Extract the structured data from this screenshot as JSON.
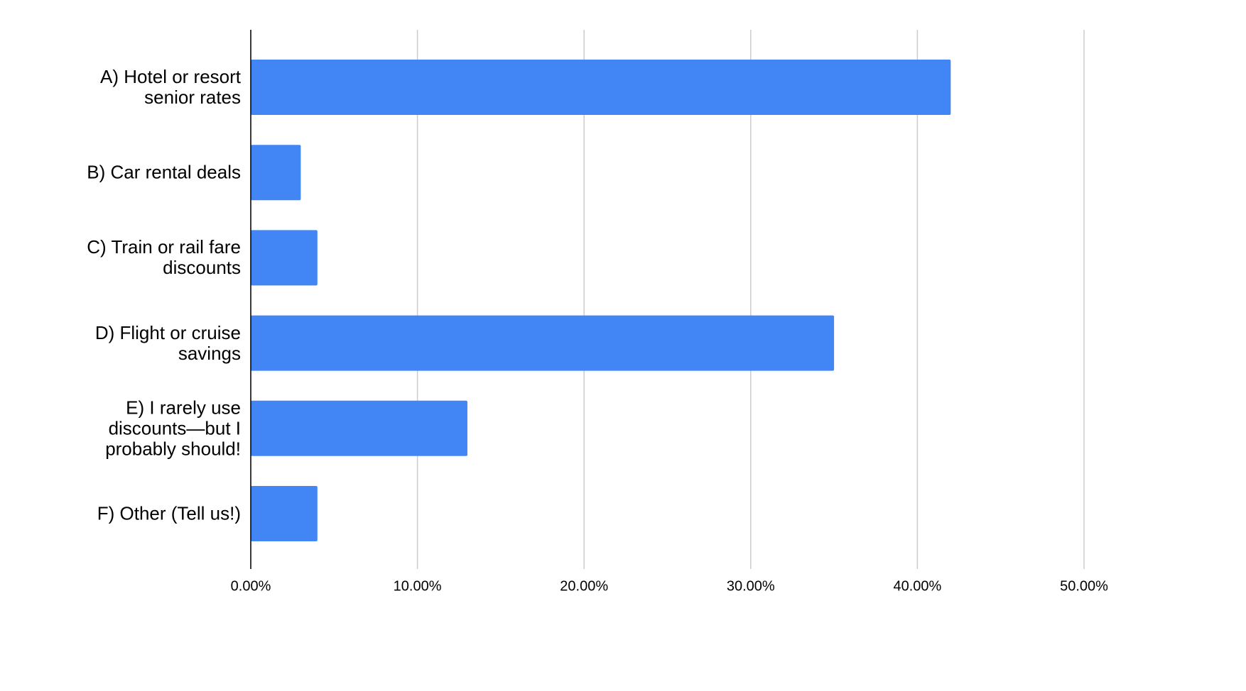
{
  "chart_data": {
    "type": "bar",
    "orientation": "horizontal",
    "categories": [
      "A) Hotel or resort senior rates",
      "B) Car rental deals",
      "C) Train or rail fare discounts",
      "D) Flight or cruise savings",
      "E) I rarely use discounts—but I probably should!",
      "F) Other (Tell us!)"
    ],
    "values": [
      42,
      3,
      4,
      35,
      13,
      4
    ],
    "color": "#4285f4",
    "xlim": [
      0,
      50
    ],
    "xticks": [
      {
        "value": 0,
        "label": "0.00%"
      },
      {
        "value": 10,
        "label": "10.00%"
      },
      {
        "value": 20,
        "label": "20.00%"
      },
      {
        "value": 30,
        "label": "30.00%"
      },
      {
        "value": 40,
        "label": "40.00%"
      },
      {
        "value": 50,
        "label": "50.00%"
      }
    ],
    "grid": true
  }
}
